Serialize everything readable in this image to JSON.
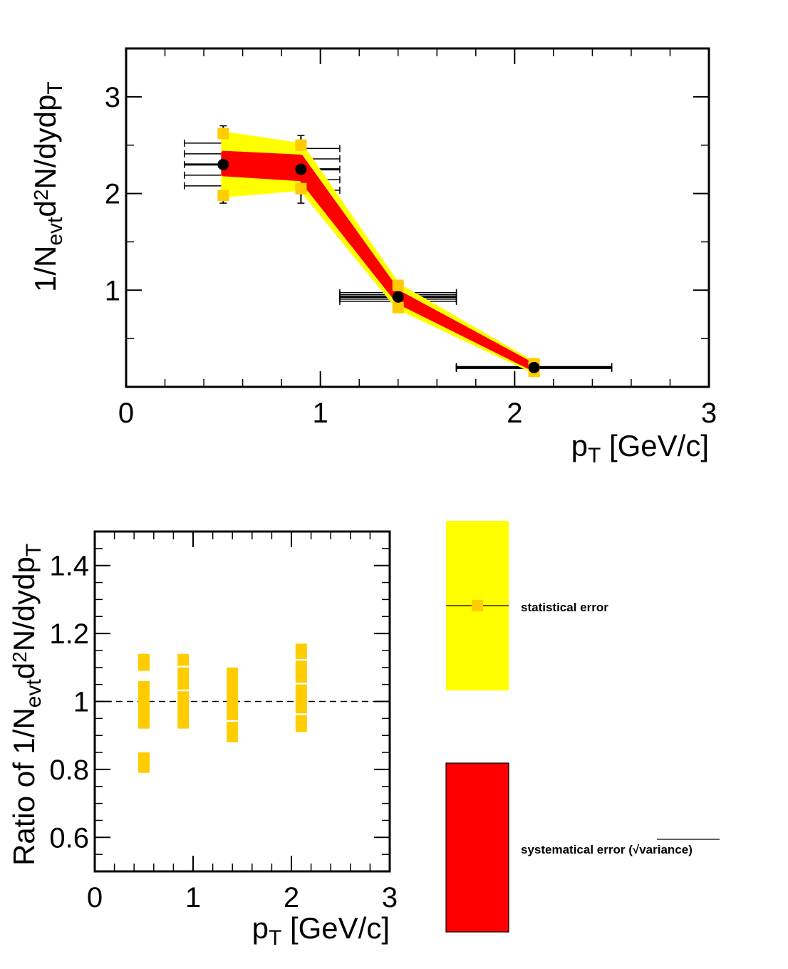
{
  "chart_data": [
    {
      "type": "scatter",
      "title": "",
      "xlabel": "p_T [GeV/c]",
      "ylabel": "1/N_evt d^2N/dydp_T",
      "xlim": [
        0,
        3
      ],
      "ylim": [
        0,
        3.5
      ],
      "xticks": [
        "0",
        "1",
        "2",
        "3"
      ],
      "yticks": [
        "1",
        "2",
        "3"
      ],
      "grid": false,
      "points": [
        {
          "x": 0.5,
          "y": 2.3,
          "xerr": 0.2,
          "yerr": 0.4
        },
        {
          "x": 0.9,
          "y": 2.25,
          "xerr": 0.2,
          "yerr": 0.35
        },
        {
          "x": 1.4,
          "y": 0.93,
          "xerr": 0.3,
          "yerr": 0.12
        },
        {
          "x": 2.1,
          "y": 0.2,
          "xerr": 0.4,
          "yerr": 0.02
        }
      ],
      "syst_band": {
        "x": [
          0.5,
          0.9,
          1.4,
          2.1
        ],
        "lower": [
          2.2,
          2.15,
          0.88,
          0.18
        ],
        "upper": [
          2.42,
          2.38,
          0.98,
          0.22
        ]
      },
      "stat_band": {
        "x": [
          0.5,
          0.9,
          1.4,
          2.1
        ],
        "lower": [
          1.98,
          2.05,
          0.82,
          0.16
        ],
        "upper": [
          2.62,
          2.5,
          1.05,
          0.24
        ]
      }
    },
    {
      "type": "scatter",
      "title": "",
      "xlabel": "p_T [GeV/c]",
      "ylabel": "Ratio of 1/N_evt d^2N/dydp_T",
      "xlim": [
        0,
        3
      ],
      "ylim": [
        0.5,
        1.5
      ],
      "xticks": [
        "0",
        "1",
        "2",
        "3"
      ],
      "yticks": [
        "0.6",
        "0.8",
        "1",
        "1.2",
        "1.4"
      ],
      "grid": false,
      "reference_line": 1.0,
      "ratio_bars": [
        {
          "x": 0.5,
          "low": 0.79,
          "high": 0.85
        },
        {
          "x": 0.5,
          "low": 0.92,
          "high": 1.06
        },
        {
          "x": 0.5,
          "low": 1.09,
          "high": 1.14
        },
        {
          "x": 0.9,
          "low": 0.92,
          "high": 1.03
        },
        {
          "x": 0.9,
          "low": 1.035,
          "high": 1.1
        },
        {
          "x": 0.9,
          "low": 1.105,
          "high": 1.14
        },
        {
          "x": 1.4,
          "low": 0.88,
          "high": 0.94
        },
        {
          "x": 1.4,
          "low": 0.945,
          "high": 1.1
        },
        {
          "x": 2.1,
          "low": 0.91,
          "high": 0.96
        },
        {
          "x": 2.1,
          "low": 0.965,
          "high": 1.05
        },
        {
          "x": 2.1,
          "low": 1.055,
          "high": 1.12
        },
        {
          "x": 2.1,
          "low": 1.125,
          "high": 1.17
        }
      ]
    }
  ],
  "legend": {
    "stat_label": "statistical error",
    "syst_label": "systematical error (",
    "syst_sqrt_arg": "variance",
    "syst_label_end": ")"
  },
  "colors": {
    "stat_band": "#ffff00",
    "syst_band": "#ff0000",
    "marker": "#ffcc00",
    "points": "#000000"
  }
}
